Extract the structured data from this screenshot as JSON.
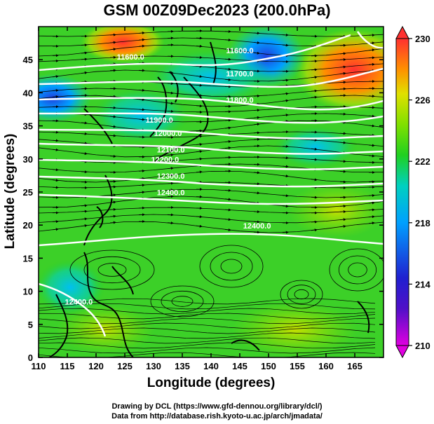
{
  "title": "GSM 00Z09Dec2023 (200.0hPa)",
  "chart_data": {
    "type": "heatmap",
    "title": "GSM 00Z09Dec2023 (200.0hPa)",
    "xlabel": "Longitude (degrees)",
    "ylabel": "Latitude  (degrees)",
    "xlim": [
      110,
      170
    ],
    "ylim": [
      0,
      50
    ],
    "x_ticks": [
      110,
      115,
      120,
      125,
      130,
      135,
      140,
      145,
      150,
      155,
      160,
      165
    ],
    "y_ticks": [
      0,
      5,
      10,
      15,
      20,
      25,
      30,
      35,
      40,
      45
    ],
    "colorbar": {
      "min": 210,
      "max": 230,
      "ticks": [
        210,
        214,
        218,
        222,
        226,
        230
      ],
      "colors": [
        "#e000e0",
        "#2020d0",
        "#00a0ff",
        "#00d0c0",
        "#20d020",
        "#80e000",
        "#e0e000",
        "#ff9000",
        "#ff3030"
      ]
    },
    "contour_labels": [
      {
        "text": "11600.0",
        "lon": 126,
        "lat": 45
      },
      {
        "text": "11600.0",
        "lon": 145,
        "lat": 46
      },
      {
        "text": "11700.0",
        "lon": 145,
        "lat": 42.5
      },
      {
        "text": "11800.0",
        "lon": 145,
        "lat": 38.5
      },
      {
        "text": "11900.0",
        "lon": 131,
        "lat": 35.5
      },
      {
        "text": "12000.0",
        "lon": 132.5,
        "lat": 33.5
      },
      {
        "text": "12100.0",
        "lon": 133,
        "lat": 31
      },
      {
        "text": "12200.0",
        "lon": 132,
        "lat": 29.5
      },
      {
        "text": "12300.0",
        "lon": 133,
        "lat": 27
      },
      {
        "text": "12400.0",
        "lon": 133,
        "lat": 24.5
      },
      {
        "text": "12400.0",
        "lon": 148,
        "lat": 19.5
      },
      {
        "text": "12400.0",
        "lon": 117,
        "lat": 8
      }
    ]
  },
  "footer": {
    "line1": "Drawing by DCL (https://www.gfd-dennou.org/library/dcl/)",
    "line2": "Data from http://database.rish.kyoto-u.ac.jp/arch/jmadata/"
  }
}
